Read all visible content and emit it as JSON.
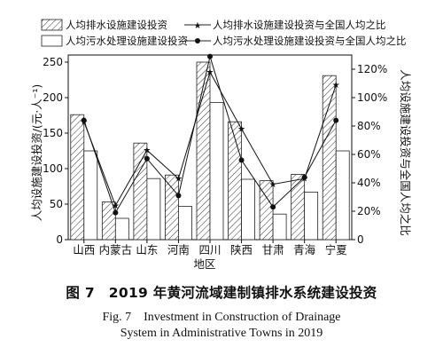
{
  "chart_data": {
    "type": "bar",
    "categories": [
      "山西",
      "内蒙古",
      "山东",
      "河南",
      "四川",
      "陕西",
      "甘肃",
      "青海",
      "宁夏"
    ],
    "xlabel": "地区",
    "ylabel": "人均设施建设投资/(元·人⁻¹)",
    "y2label": "人均设施建设投资与全国人均之比",
    "ylim": [
      0,
      260
    ],
    "y2lim": [
      0,
      1.3
    ],
    "yticks": [
      "0",
      "50",
      "100",
      "150",
      "200",
      "250"
    ],
    "y2ticks": [
      "0",
      "20%",
      "40%",
      "60%",
      "80%",
      "100%",
      "120%"
    ],
    "legend_position": "top",
    "series": [
      {
        "name": "人均排水设施建设投资",
        "kind": "bar",
        "pattern": "hatched",
        "values": [
          176,
          53,
          136,
          91,
          250,
          166,
          83,
          92,
          231
        ]
      },
      {
        "name": "人均污水处理设施建设投资",
        "kind": "bar",
        "pattern": "plain",
        "values": [
          125,
          30,
          86,
          47,
          193,
          85,
          36,
          67,
          125
        ]
      },
      {
        "name": "人均排水设施建设投资与全国人均之比",
        "kind": "line",
        "marker": "star",
        "axis": "right",
        "values": [
          0.83,
          0.24,
          0.63,
          0.43,
          1.18,
          0.78,
          0.39,
          0.43,
          1.09
        ]
      },
      {
        "name": "人均污水处理设施建设投资与全国人均之比",
        "kind": "line",
        "marker": "circle",
        "axis": "right",
        "values": [
          0.84,
          0.19,
          0.57,
          0.31,
          1.29,
          0.56,
          0.23,
          0.44,
          0.84
        ]
      }
    ]
  },
  "caption": {
    "cn": "图 7　2019 年黄河流域建制镇排水系统建设投资",
    "en_line1": "Fig. 7　Investment in Construction of Drainage",
    "en_line2": "System in Administrative Towns in 2019"
  }
}
